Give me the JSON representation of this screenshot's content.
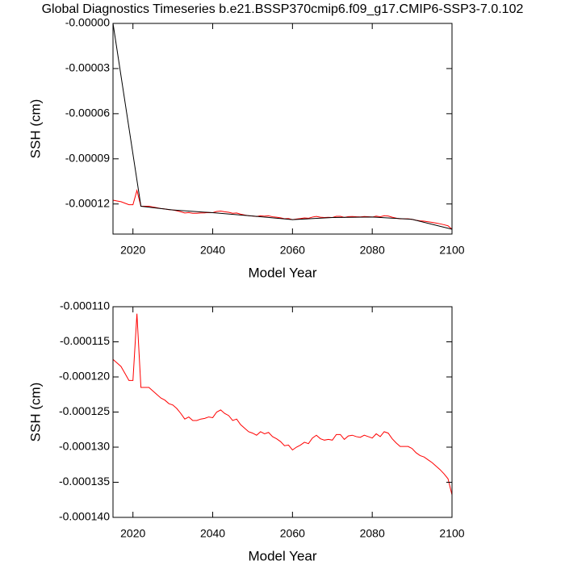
{
  "chart_data": [
    {
      "type": "line",
      "title": "Global Diagnostics Timeseries b.e21.BSSP370cmip6.f09_g17.CMIP6-SSP3-7.0.102",
      "x_label": "Model Year",
      "y_label": "SSH (cm)",
      "xlim": [
        2015,
        2100
      ],
      "xticks": [
        2020,
        2040,
        2060,
        2080,
        2100
      ],
      "ylim": [
        -0.00014,
        0
      ],
      "yticks": [
        {
          "value": 0,
          "label": "-0.00000"
        },
        {
          "value": -3e-05,
          "label": "-0.00003"
        },
        {
          "value": -6e-05,
          "label": "-0.00006"
        },
        {
          "value": -9e-05,
          "label": "-0.00009"
        },
        {
          "value": -0.00012,
          "label": "-0.00012"
        }
      ],
      "x": [
        2015,
        2016,
        2017,
        2018,
        2019,
        2020,
        2021,
        2022,
        2023,
        2024,
        2025,
        2026,
        2027,
        2028,
        2029,
        2030,
        2031,
        2032,
        2033,
        2034,
        2035,
        2036,
        2037,
        2038,
        2039,
        2040,
        2041,
        2042,
        2043,
        2044,
        2045,
        2046,
        2047,
        2048,
        2049,
        2050,
        2051,
        2052,
        2053,
        2054,
        2055,
        2056,
        2057,
        2058,
        2059,
        2060,
        2061,
        2062,
        2063,
        2064,
        2065,
        2066,
        2067,
        2068,
        2069,
        2070,
        2071,
        2072,
        2073,
        2074,
        2075,
        2076,
        2077,
        2078,
        2079,
        2080,
        2081,
        2082,
        2083,
        2084,
        2085,
        2086,
        2087,
        2088,
        2089,
        2090,
        2091,
        2092,
        2093,
        2094,
        2095,
        2096,
        2097,
        2098,
        2099,
        2100
      ],
      "series": [
        {
          "color": "#ff0000",
          "values": [
            -0.0001175,
            -0.000118,
            -0.0001185,
            -0.0001195,
            -0.0001205,
            -0.0001205,
            -0.000111,
            -0.0001215,
            -0.0001215,
            -0.0001215,
            -0.000122,
            -0.0001225,
            -0.000123,
            -0.0001233,
            -0.0001238,
            -0.000124,
            -0.0001245,
            -0.0001252,
            -0.000126,
            -0.0001257,
            -0.0001262,
            -0.0001262,
            -0.000126,
            -0.0001259,
            -0.0001257,
            -0.0001258,
            -0.000125,
            -0.0001247,
            -0.0001252,
            -0.0001255,
            -0.0001262,
            -0.000126,
            -0.0001268,
            -0.0001273,
            -0.0001278,
            -0.000128,
            -0.0001283,
            -0.0001278,
            -0.0001281,
            -0.0001279,
            -0.0001285,
            -0.0001288,
            -0.0001292,
            -0.0001298,
            -0.0001297,
            -0.0001304,
            -0.00013,
            -0.0001297,
            -0.0001293,
            -0.0001295,
            -0.0001287,
            -0.0001283,
            -0.0001288,
            -0.000129,
            -0.0001289,
            -0.000129,
            -0.0001282,
            -0.0001282,
            -0.0001289,
            -0.0001284,
            -0.0001283,
            -0.0001285,
            -0.0001286,
            -0.0001283,
            -0.0001285,
            -0.0001287,
            -0.0001281,
            -0.0001285,
            -0.0001278,
            -0.000128,
            -0.0001288,
            -0.0001294,
            -0.0001299,
            -0.0001299,
            -0.0001299,
            -0.0001302,
            -0.0001308,
            -0.0001312,
            -0.0001314,
            -0.0001318,
            -0.0001322,
            -0.0001327,
            -0.0001332,
            -0.0001338,
            -0.0001345,
            -0.0001368
          ]
        },
        {
          "color": "#000000",
          "x": [
            2015,
            2022,
            2030,
            2040,
            2050,
            2060,
            2070,
            2080,
            2090,
            2100
          ],
          "values": [
            0,
            -0.0001215,
            -0.000124,
            -0.0001258,
            -0.000128,
            -0.0001304,
            -0.000129,
            -0.0001287,
            -0.0001302,
            -0.0001368
          ]
        }
      ]
    },
    {
      "type": "line",
      "x_label": "Model Year",
      "y_label": "SSH (cm)",
      "xlim": [
        2015,
        2100
      ],
      "xticks": [
        2020,
        2040,
        2060,
        2080,
        2100
      ],
      "ylim": [
        -0.00014,
        -0.00011
      ],
      "yticks": [
        {
          "value": -0.00011,
          "label": "-0.000110"
        },
        {
          "value": -0.000115,
          "label": "-0.000115"
        },
        {
          "value": -0.00012,
          "label": "-0.000120"
        },
        {
          "value": -0.000125,
          "label": "-0.000125"
        },
        {
          "value": -0.00013,
          "label": "-0.000130"
        },
        {
          "value": -0.000135,
          "label": "-0.000135"
        },
        {
          "value": -0.00014,
          "label": "-0.000140"
        }
      ],
      "x": [
        2015,
        2016,
        2017,
        2018,
        2019,
        2020,
        2021,
        2022,
        2023,
        2024,
        2025,
        2026,
        2027,
        2028,
        2029,
        2030,
        2031,
        2032,
        2033,
        2034,
        2035,
        2036,
        2037,
        2038,
        2039,
        2040,
        2041,
        2042,
        2043,
        2044,
        2045,
        2046,
        2047,
        2048,
        2049,
        2050,
        2051,
        2052,
        2053,
        2054,
        2055,
        2056,
        2057,
        2058,
        2059,
        2060,
        2061,
        2062,
        2063,
        2064,
        2065,
        2066,
        2067,
        2068,
        2069,
        2070,
        2071,
        2072,
        2073,
        2074,
        2075,
        2076,
        2077,
        2078,
        2079,
        2080,
        2081,
        2082,
        2083,
        2084,
        2085,
        2086,
        2087,
        2088,
        2089,
        2090,
        2091,
        2092,
        2093,
        2094,
        2095,
        2096,
        2097,
        2098,
        2099,
        2100
      ],
      "series": [
        {
          "color": "#ff0000",
          "values": [
            -0.0001175,
            -0.000118,
            -0.0001185,
            -0.0001195,
            -0.0001205,
            -0.0001205,
            -0.000111,
            -0.0001215,
            -0.0001215,
            -0.0001215,
            -0.000122,
            -0.0001225,
            -0.000123,
            -0.0001233,
            -0.0001238,
            -0.000124,
            -0.0001245,
            -0.0001252,
            -0.000126,
            -0.0001257,
            -0.0001262,
            -0.0001262,
            -0.000126,
            -0.0001259,
            -0.0001257,
            -0.0001258,
            -0.000125,
            -0.0001247,
            -0.0001252,
            -0.0001255,
            -0.0001262,
            -0.000126,
            -0.0001268,
            -0.0001273,
            -0.0001278,
            -0.000128,
            -0.0001283,
            -0.0001278,
            -0.0001281,
            -0.0001279,
            -0.0001285,
            -0.0001288,
            -0.0001292,
            -0.0001298,
            -0.0001297,
            -0.0001304,
            -0.00013,
            -0.0001297,
            -0.0001293,
            -0.0001295,
            -0.0001287,
            -0.0001283,
            -0.0001288,
            -0.000129,
            -0.0001289,
            -0.000129,
            -0.0001282,
            -0.0001282,
            -0.0001289,
            -0.0001284,
            -0.0001283,
            -0.0001285,
            -0.0001286,
            -0.0001283,
            -0.0001285,
            -0.0001287,
            -0.0001281,
            -0.0001285,
            -0.0001278,
            -0.000128,
            -0.0001288,
            -0.0001294,
            -0.0001299,
            -0.0001299,
            -0.0001299,
            -0.0001302,
            -0.0001308,
            -0.0001312,
            -0.0001314,
            -0.0001318,
            -0.0001322,
            -0.0001327,
            -0.0001332,
            -0.0001338,
            -0.0001345,
            -0.0001368
          ]
        }
      ]
    }
  ]
}
